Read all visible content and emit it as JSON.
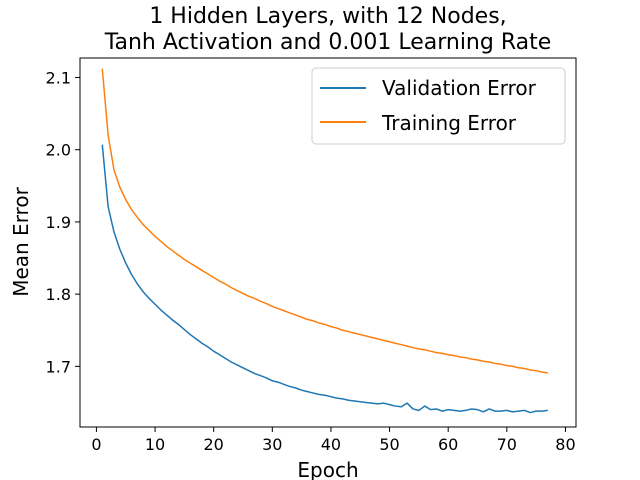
{
  "chart_data": {
    "type": "line",
    "title": "1 Hidden Layers, with 12 Nodes,\nTanh Activation and 0.001 Learning Rate",
    "xlabel": "Epoch",
    "ylabel": "Mean Error",
    "xlim": [
      -2.8,
      81.8
    ],
    "ylim": [
      1.616,
      2.127
    ],
    "x_ticks": [
      0,
      10,
      20,
      30,
      40,
      50,
      60,
      70,
      80
    ],
    "y_ticks": [
      1.7,
      1.8,
      1.9,
      2.0,
      2.1
    ],
    "grid": false,
    "legend_position": "top-right",
    "x": [
      1,
      2,
      3,
      4,
      5,
      6,
      7,
      8,
      9,
      10,
      11,
      12,
      13,
      14,
      15,
      16,
      17,
      18,
      19,
      20,
      21,
      22,
      23,
      24,
      25,
      26,
      27,
      28,
      29,
      30,
      31,
      32,
      33,
      34,
      35,
      36,
      37,
      38,
      39,
      40,
      41,
      42,
      43,
      44,
      45,
      46,
      47,
      48,
      49,
      50,
      51,
      52,
      53,
      54,
      55,
      56,
      57,
      58,
      59,
      60,
      61,
      62,
      63,
      64,
      65,
      66,
      67,
      68,
      69,
      70,
      71,
      72,
      73,
      74,
      75,
      76,
      77
    ],
    "series": [
      {
        "name": "Validation Error",
        "color": "#1f77b4",
        "values": [
          2.007,
          1.921,
          1.886,
          1.862,
          1.843,
          1.827,
          1.814,
          1.803,
          1.794,
          1.786,
          1.778,
          1.771,
          1.764,
          1.758,
          1.751,
          1.744,
          1.738,
          1.732,
          1.727,
          1.721,
          1.716,
          1.711,
          1.706,
          1.702,
          1.698,
          1.694,
          1.69,
          1.687,
          1.684,
          1.68,
          1.678,
          1.675,
          1.672,
          1.67,
          1.667,
          1.665,
          1.663,
          1.661,
          1.66,
          1.658,
          1.656,
          1.655,
          1.653,
          1.652,
          1.651,
          1.65,
          1.649,
          1.648,
          1.649,
          1.647,
          1.645,
          1.644,
          1.649,
          1.641,
          1.639,
          1.645,
          1.64,
          1.641,
          1.638,
          1.64,
          1.639,
          1.638,
          1.639,
          1.641,
          1.64,
          1.637,
          1.641,
          1.638,
          1.638,
          1.639,
          1.637,
          1.638,
          1.639,
          1.636,
          1.638,
          1.638,
          1.639
        ]
      },
      {
        "name": "Training Error",
        "color": "#ff7f0e",
        "values": [
          2.112,
          2.02,
          1.972,
          1.948,
          1.931,
          1.917,
          1.906,
          1.896,
          1.888,
          1.88,
          1.873,
          1.866,
          1.86,
          1.854,
          1.848,
          1.843,
          1.838,
          1.833,
          1.828,
          1.823,
          1.818,
          1.814,
          1.809,
          1.805,
          1.801,
          1.797,
          1.794,
          1.79,
          1.787,
          1.783,
          1.78,
          1.777,
          1.774,
          1.771,
          1.768,
          1.765,
          1.763,
          1.76,
          1.758,
          1.755,
          1.753,
          1.75,
          1.748,
          1.746,
          1.744,
          1.742,
          1.74,
          1.738,
          1.736,
          1.734,
          1.732,
          1.73,
          1.728,
          1.726,
          1.724,
          1.723,
          1.721,
          1.719,
          1.718,
          1.716,
          1.715,
          1.713,
          1.712,
          1.71,
          1.709,
          1.707,
          1.706,
          1.704,
          1.703,
          1.701,
          1.7,
          1.698,
          1.697,
          1.695,
          1.694,
          1.692,
          1.691
        ]
      }
    ]
  }
}
